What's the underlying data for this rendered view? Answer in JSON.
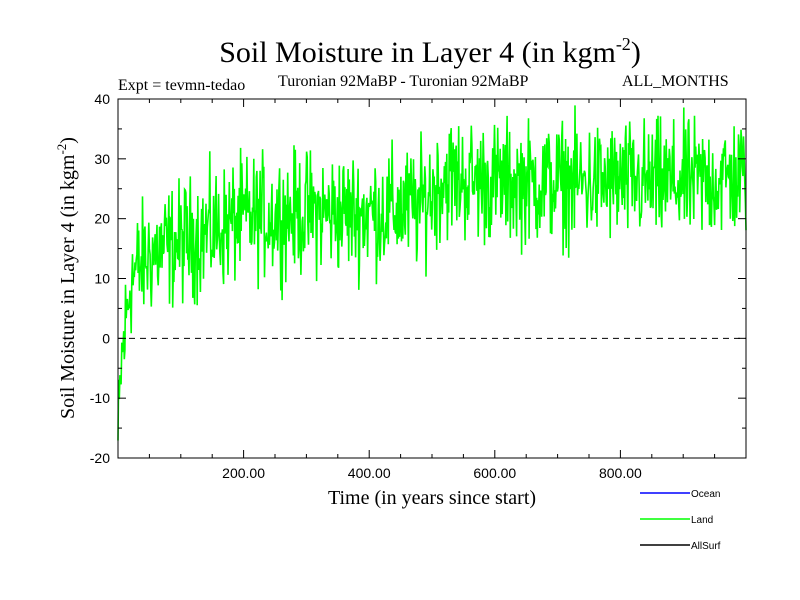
{
  "chart_data": {
    "type": "line",
    "title_main": "Soil Moisture in Layer 4 (in kgm",
    "title_sup": "-2",
    "title_close": ")",
    "subtitle_left": "Expt = tevmn-tedao",
    "subtitle_center": "Turonian  92MaBP - Turonian  92MaBP",
    "subtitle_right": "ALL_MONTHS",
    "xlabel": "Time (in years since start)",
    "ylabel_main": "Soil Moisture in Layer 4 (in kgm",
    "ylabel_sup": "-2",
    "ylabel_close": ")",
    "xlim": [
      0,
      1000
    ],
    "ylim": [
      -20,
      40
    ],
    "x_ticks": [
      200,
      400,
      600,
      800
    ],
    "x_tick_labels": [
      "200.00",
      "400.00",
      "600.00",
      "800.00"
    ],
    "y_ticks": [
      -20,
      -10,
      0,
      10,
      20,
      30,
      40
    ],
    "y_tick_labels": [
      "-20",
      "-10",
      "0",
      "10",
      "20",
      "30",
      "40"
    ],
    "zero_line": 0,
    "series": [
      {
        "name": "Ocean",
        "color": "#0000ff",
        "values": []
      },
      {
        "name": "Land",
        "color": "#00ff00",
        "x_start": 0,
        "x_end": 1000,
        "n_points": 1000,
        "noise_amplitude": 5,
        "trend": {
          "x": [
            0,
            5,
            20,
            50,
            100,
            200,
            300,
            400,
            480,
            520,
            600,
            700,
            800,
            900,
            1000
          ],
          "y": [
            -18,
            -5,
            10,
            14,
            16,
            20,
            21,
            21,
            22,
            27,
            26,
            26,
            26,
            26,
            27
          ]
        }
      },
      {
        "name": "AllSurf",
        "color": "#000000",
        "values": []
      }
    ],
    "legend": [
      "Ocean",
      "Land",
      "AllSurf"
    ],
    "legend_position": "bottom-right"
  }
}
